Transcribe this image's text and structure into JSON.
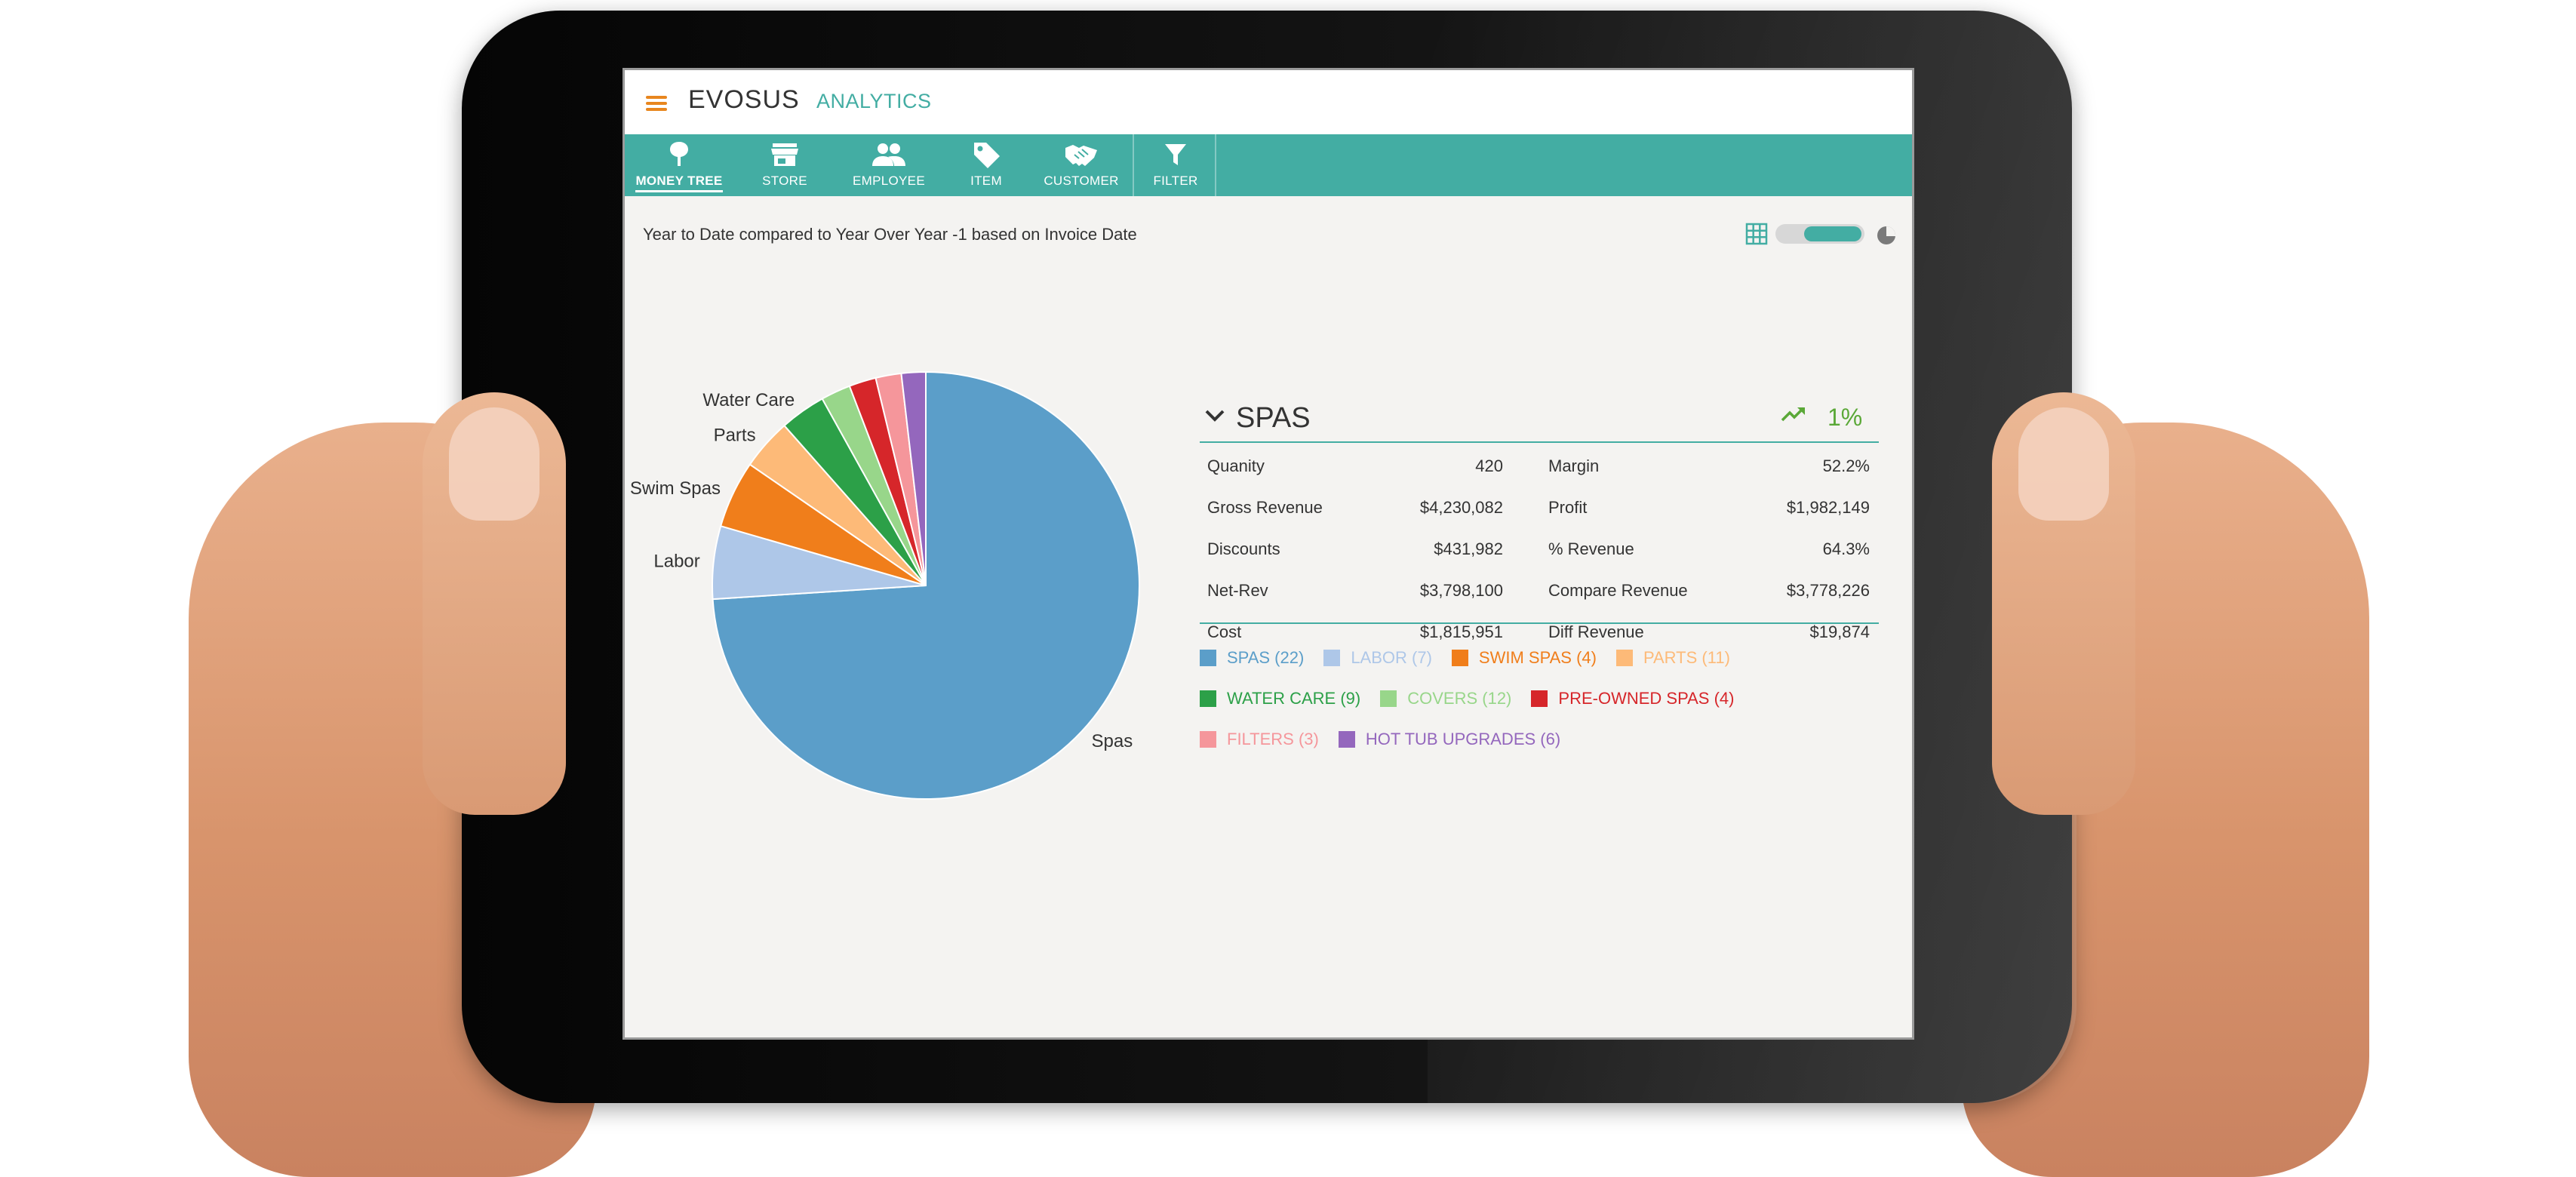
{
  "header": {
    "brand": "EVOSUS",
    "product": "ANALYTICS"
  },
  "nav": {
    "items": [
      {
        "label": "MONEY TREE",
        "icon": "tree-icon",
        "active": true
      },
      {
        "label": "STORE",
        "icon": "store-icon",
        "active": false
      },
      {
        "label": "EMPLOYEE",
        "icon": "people-icon",
        "active": false
      },
      {
        "label": "ITEM",
        "icon": "tag-icon",
        "active": false
      },
      {
        "label": "CUSTOMER",
        "icon": "handshake-icon",
        "active": false
      },
      {
        "label": "FILTER",
        "icon": "filter-icon",
        "active": false
      }
    ]
  },
  "subtitle": "Year to Date compared to Year Over Year -1 based on Invoice Date",
  "view_toggle": {
    "mode": "pie"
  },
  "chart_data": {
    "type": "pie",
    "slices": [
      {
        "name": "Spas",
        "label": "Spas",
        "value": 72.5,
        "color": "#5b9ec9"
      },
      {
        "name": "Labor",
        "label": "Labor",
        "value": 5.4,
        "color": "#aec7e8"
      },
      {
        "name": "Swim Spas",
        "label": "Swim Spas",
        "value": 5.0,
        "color": "#f07e1b"
      },
      {
        "name": "Parts",
        "label": "Parts",
        "value": 3.8,
        "color": "#fdba78"
      },
      {
        "name": "Water Care",
        "label": "Water Care",
        "value": 3.4,
        "color": "#2ca048"
      },
      {
        "name": "Covers",
        "label": "",
        "value": 2.2,
        "color": "#98d68a"
      },
      {
        "name": "Pre-Owned Spas",
        "label": "",
        "value": 2.0,
        "color": "#d6262a"
      },
      {
        "name": "Filters",
        "label": "",
        "value": 1.9,
        "color": "#f5969b"
      },
      {
        "name": "Hot Tub Upgrades",
        "label": "",
        "value": 1.8,
        "color": "#9467bd"
      }
    ]
  },
  "detail": {
    "title": "SPAS",
    "trend": "1%",
    "trend_color": "#5aa837",
    "left": [
      {
        "label": "Quanity",
        "value": "420"
      },
      {
        "label": "Gross Revenue",
        "value": "$4,230,082"
      },
      {
        "label": "Discounts",
        "value": "$431,982"
      },
      {
        "label": "Net-Rev",
        "value": "$3,798,100"
      },
      {
        "label": "Cost",
        "value": "$1,815,951"
      }
    ],
    "right": [
      {
        "label": "Margin",
        "value": "52.2%"
      },
      {
        "label": "Profit",
        "value": "$1,982,149"
      },
      {
        "label": "% Revenue",
        "value": "64.3%"
      },
      {
        "label": "Compare Revenue",
        "value": "$3,778,226"
      },
      {
        "label": "Diff Revenue",
        "value": "$19,874"
      }
    ]
  },
  "legend": [
    {
      "label": "SPAS (22)",
      "color": "#5b9ec9"
    },
    {
      "label": "LABOR (7)",
      "color": "#aec7e8"
    },
    {
      "label": "SWIM SPAS (4)",
      "color": "#f07e1b"
    },
    {
      "label": "PARTS (11)",
      "color": "#fdba78"
    },
    {
      "label": "WATER CARE (9)",
      "color": "#2ca048"
    },
    {
      "label": "COVERS (12)",
      "color": "#98d68a"
    },
    {
      "label": "PRE-OWNED SPAS (4)",
      "color": "#d6262a"
    },
    {
      "label": "FILTERS (3)",
      "color": "#f5969b"
    },
    {
      "label": "HOT TUB UPGRADES (6)",
      "color": "#9467bd"
    }
  ],
  "colors": {
    "accent": "#43ada3",
    "brand_orange": "#e8861e"
  }
}
